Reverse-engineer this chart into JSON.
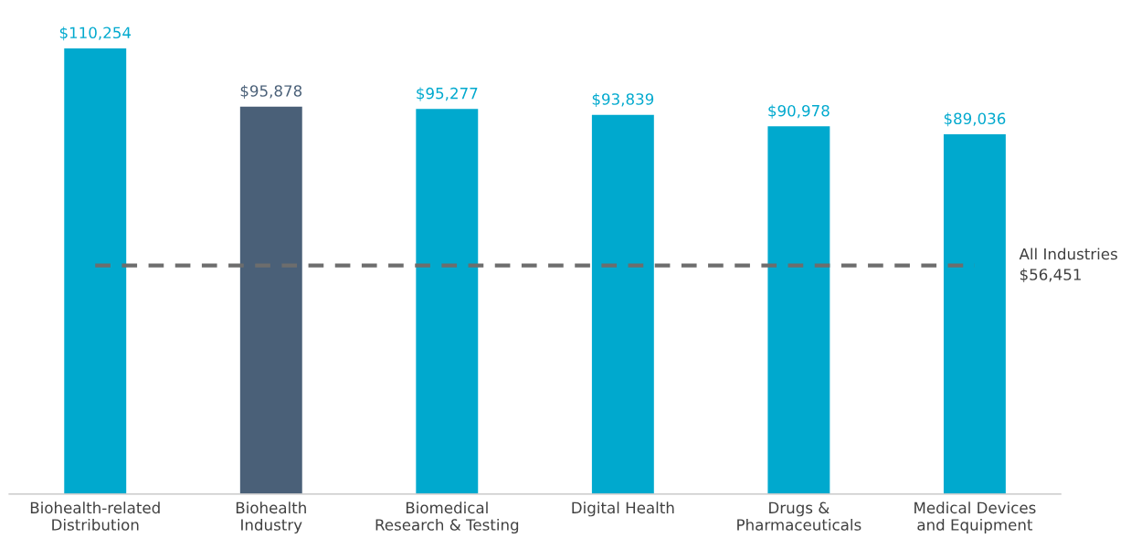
{
  "chart_data": {
    "type": "bar",
    "categories": [
      "Biohealth-related\nDistribution",
      "Biohealth\nIndustry",
      "Biomedical\nResearch & Testing",
      "Digital Health",
      "Drugs &\nPharmaceuticals",
      "Medical Devices\nand Equipment"
    ],
    "values": [
      110254,
      95878,
      95277,
      93839,
      90978,
      89036
    ],
    "colors": [
      "#00a9ce",
      "#4a6078",
      "#00a9ce",
      "#00a9ce",
      "#00a9ce",
      "#00a9ce"
    ],
    "value_labels": [
      "$110,254",
      "$95,878",
      "$95,277",
      "$93,839",
      "$90,978",
      "$89,036"
    ],
    "ref_lines": [
      {
        "axis": "y",
        "value": 56451,
        "label": "All Industries\n$56,451",
        "color": "#6d6d6d",
        "line_style": "dashed"
      }
    ],
    "grid": false,
    "legend": false
  }
}
